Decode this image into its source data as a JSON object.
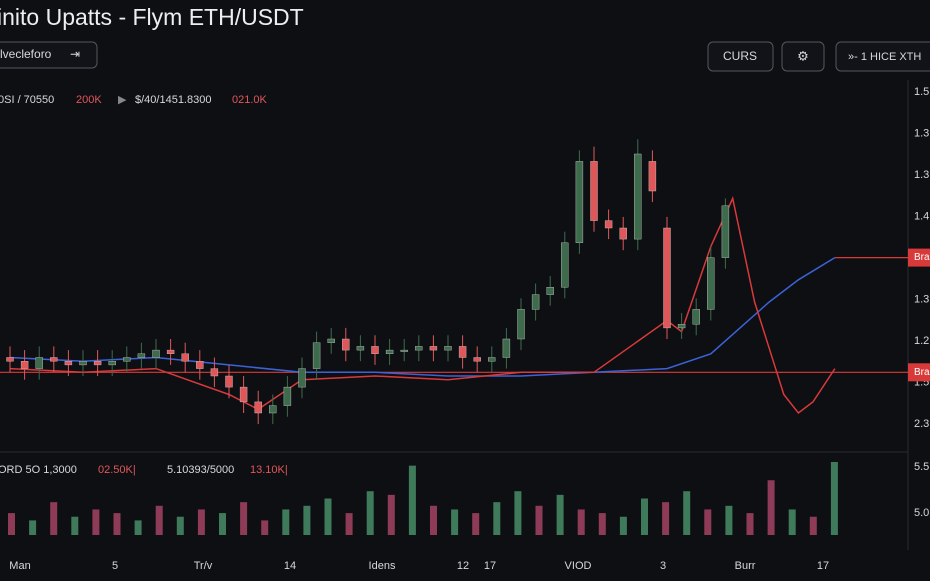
{
  "header": {
    "title": "inito Upatts - Flym ETH/USDT",
    "selector": "lvecleforo",
    "selector_icon": "⇥",
    "buttons": [
      "CURS",
      "⚙",
      "»- 1 HICE XTH"
    ]
  },
  "info_row": [
    "0SI / 70550",
    "200K",
    "▶",
    "$/40/1451.8300",
    "021.0K"
  ],
  "volume_info": [
    "ORD 5O 1,3000",
    "02.50K|",
    "5.10393/5000",
    "13.10K|"
  ],
  "price_axis_labels": [
    "1.5",
    "1.3",
    "1.3",
    "1.4",
    "1.3",
    "1.3",
    "1.2",
    "1.5",
    "2.3"
  ],
  "volume_axis_labels": [
    "5.5",
    "5.0"
  ],
  "x_labels": [
    "Man",
    "5",
    "Tr/v",
    "14",
    "Idens",
    "12",
    "17",
    "VIOD",
    "3",
    "Burr",
    "17"
  ],
  "chart_data": {
    "type": "candlestick",
    "ylim": [
      0,
      100
    ],
    "open": [
      25,
      24,
      22,
      25,
      24,
      23,
      24,
      23,
      24,
      25,
      25,
      27,
      26,
      24,
      22,
      20,
      17,
      13,
      10,
      12,
      17,
      22,
      29,
      30,
      27,
      28,
      26,
      27,
      27,
      28,
      27,
      28,
      25,
      24,
      25,
      30,
      38,
      42,
      44,
      56,
      78,
      62,
      60,
      57,
      78,
      60,
      33,
      34,
      38,
      52
    ],
    "high": [
      28,
      27,
      28,
      28,
      27,
      27,
      27,
      27,
      28,
      29,
      30,
      30,
      29,
      27,
      25,
      23,
      20,
      16,
      15,
      20,
      25,
      32,
      33,
      33,
      31,
      31,
      30,
      30,
      31,
      31,
      31,
      31,
      28,
      28,
      33,
      41,
      45,
      47,
      59,
      81,
      82,
      65,
      63,
      84,
      81,
      63,
      37,
      41,
      55,
      68
    ],
    "low": [
      21,
      19,
      19,
      21,
      20,
      20,
      20,
      20,
      21,
      22,
      22,
      23,
      21,
      19,
      17,
      14,
      10,
      7,
      7,
      9,
      14,
      19,
      26,
      24,
      24,
      23,
      23,
      24,
      24,
      24,
      24,
      22,
      21,
      21,
      22,
      27,
      35,
      39,
      41,
      53,
      59,
      57,
      54,
      54,
      67,
      30,
      30,
      31,
      35,
      49
    ],
    "close": [
      24,
      22,
      25,
      24,
      23,
      24,
      23,
      24,
      25,
      26,
      27,
      26,
      24,
      22,
      20,
      17,
      13,
      10,
      12,
      17,
      22,
      29,
      30,
      27,
      28,
      26,
      27,
      27,
      28,
      27,
      28,
      25,
      24,
      25,
      30,
      38,
      42,
      44,
      56,
      78,
      62,
      60,
      57,
      80,
      70,
      33,
      34,
      38,
      52,
      66
    ],
    "up_color": "#3e6b4c",
    "down_color": "#e0575a",
    "lines": [
      {
        "color": "#3b63d8",
        "x": [
          0,
          5,
          10,
          15,
          20,
          25,
          30,
          35,
          40,
          45,
          48,
          50,
          52,
          54,
          56.5
        ],
        "values": [
          25,
          24,
          25,
          23,
          21,
          21,
          20,
          20,
          21,
          22,
          26,
          33,
          40,
          46,
          52
        ]
      },
      {
        "color": "#d83a3a",
        "x": [
          0,
          5,
          10,
          15,
          17,
          20,
          25,
          30,
          35,
          40,
          45,
          46,
          48,
          49.5,
          51,
          53,
          54,
          55,
          56.5
        ],
        "values": [
          22,
          21,
          22,
          15,
          11,
          19,
          20,
          19,
          21,
          21,
          35,
          32,
          55,
          68,
          40,
          15,
          10,
          13,
          22
        ]
      }
    ],
    "price_lines": [
      {
        "value": 52,
        "label": "Bra"
      },
      {
        "value": 21,
        "label": "Bra"
      }
    ],
    "volume": {
      "ylim": [
        0,
        100
      ],
      "values": [
        30,
        20,
        45,
        25,
        35,
        30,
        20,
        40,
        25,
        35,
        30,
        45,
        20,
        35,
        40,
        50,
        30,
        60,
        55,
        95,
        40,
        35,
        30,
        45,
        60,
        40,
        55,
        35,
        30,
        25,
        50,
        45,
        60,
        35,
        40,
        30,
        75,
        35,
        25,
        100
      ],
      "colors": [
        "#8e3b57",
        "#3f7a5a",
        "#8e3b57",
        "#3f7a5a",
        "#8e3b57",
        "#8e3b57",
        "#3f7a5a",
        "#8e3b57",
        "#3f7a5a",
        "#8e3b57",
        "#3f7a5a",
        "#8e3b57",
        "#8e3b57",
        "#3f7a5a",
        "#3f7a5a",
        "#3f7a5a",
        "#8e3b57",
        "#3f7a5a",
        "#8e3b57",
        "#3f7a5a",
        "#8e3b57",
        "#3f7a5a",
        "#8e3b57",
        "#3f7a5a",
        "#3f7a5a",
        "#8e3b57",
        "#3f7a5a",
        "#8e3b57",
        "#8e3b57",
        "#3f7a5a",
        "#3f7a5a",
        "#8e3b57",
        "#3f7a5a",
        "#8e3b57",
        "#3f7a5a",
        "#8e3b57",
        "#8e3b57",
        "#3f7a5a",
        "#8e3b57",
        "#3f7a5a"
      ]
    }
  }
}
